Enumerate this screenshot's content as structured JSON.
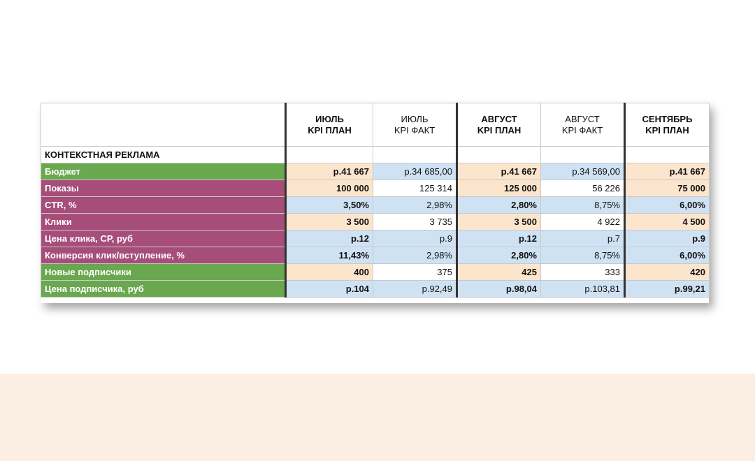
{
  "headers": [
    {
      "l1": "ИЮЛЬ",
      "l2": "KPI ПЛАН"
    },
    {
      "l1": "ИЮЛЬ",
      "l2": "KPI ФАКТ"
    },
    {
      "l1": "АВГУСТ",
      "l2": "KPI ПЛАН"
    },
    {
      "l1": "АВГУСТ",
      "l2": "KPI ФАКТ"
    },
    {
      "l1": "СЕНТЯБРЬ",
      "l2": "KPI ПЛАН"
    }
  ],
  "section_title": "КОНТЕКСТНАЯ РЕКЛАМА",
  "rows": [
    {
      "label": "Бюджет",
      "cells": [
        "р.41 667",
        "р.34 685,00",
        "р.41 667",
        "р.34 569,00",
        "р.41 667"
      ]
    },
    {
      "label": "Показы",
      "cells": [
        "100 000",
        "125 314",
        "125 000",
        "56 226",
        "75 000"
      ]
    },
    {
      "label": "CTR, %",
      "cells": [
        "3,50%",
        "2,98%",
        "2,80%",
        "8,75%",
        "6,00%"
      ]
    },
    {
      "label": "Клики",
      "cells": [
        "3 500",
        "3 735",
        "3 500",
        "4 922",
        "4 500"
      ]
    },
    {
      "label": "Цена клика, СР, руб",
      "cells": [
        "р.12",
        "р.9",
        "р.12",
        "р.7",
        "р.9"
      ]
    },
    {
      "label": "Конверсия клик/вступление, %",
      "cells": [
        "11,43%",
        "2,98%",
        "2,80%",
        "8,75%",
        "6,00%"
      ]
    },
    {
      "label": "Новые подписчики",
      "cells": [
        "400",
        "375",
        "425",
        "333",
        "420"
      ]
    },
    {
      "label": "Цена подписчика, руб",
      "cells": [
        "р.104",
        "р.92,49",
        "р.98,04",
        "р.103,81",
        "р.99,21"
      ]
    }
  ],
  "colors": {
    "label_green": "#6aa84f",
    "label_purple": "#a64d79",
    "cell_orange": "#fce5cd",
    "cell_blue": "#cfe2f3",
    "bottom_band": "#fbeee3"
  }
}
